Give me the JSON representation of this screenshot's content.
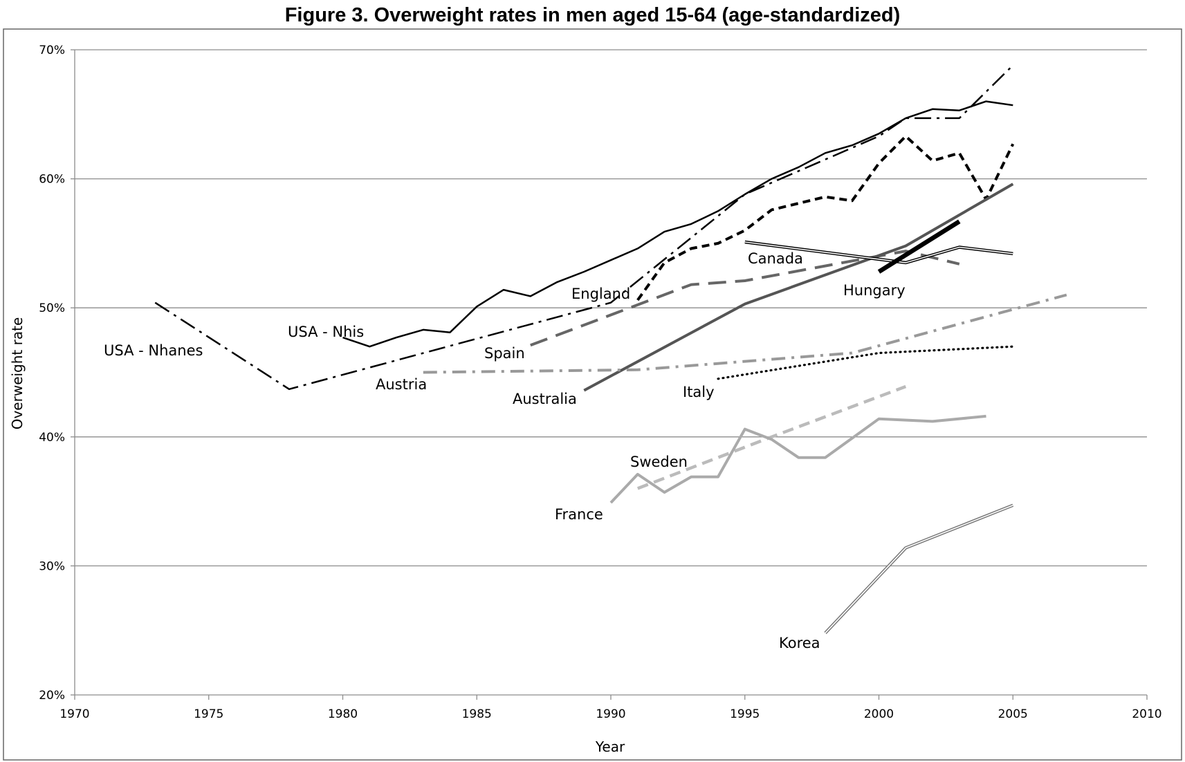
{
  "chart_data": {
    "type": "line",
    "title": "Figure 3.    Overweight rates in men aged 15-64 (age-standardized)",
    "xlabel": "Year",
    "ylabel": "Overweight rate",
    "xlim": [
      1970,
      2010
    ],
    "ylim": [
      20,
      70
    ],
    "x_ticks": [
      1970,
      1975,
      1980,
      1985,
      1990,
      1995,
      2000,
      2005,
      2010
    ],
    "x_tick_labels": [
      "1970",
      "1975",
      "1980",
      "1985",
      "1990",
      "1995",
      "2000",
      "2005",
      "2010"
    ],
    "y_ticks": [
      20,
      30,
      40,
      50,
      60,
      70
    ],
    "y_tick_labels": [
      "20%",
      "30%",
      "40%",
      "50%",
      "60%",
      "70%"
    ],
    "grid": "horizontal",
    "legend": "none (series labelled directly on the plot)",
    "series": [
      {
        "name": "USA - Nhanes",
        "color": "#000000",
        "style": "dash-dot",
        "points": [
          [
            1973,
            50.4
          ],
          [
            1978,
            43.7
          ],
          [
            1990,
            50.4
          ],
          [
            1995,
            58.8
          ],
          [
            2000,
            63.3
          ],
          [
            2001,
            64.7
          ],
          [
            2003,
            64.7
          ],
          [
            2005,
            68.8
          ]
        ]
      },
      {
        "name": "USA - Nhis",
        "color": "#000000",
        "style": "solid-thin",
        "points": [
          [
            1980,
            47.7
          ],
          [
            1981,
            47.0
          ],
          [
            1982,
            47.7
          ],
          [
            1983,
            48.3
          ],
          [
            1984,
            48.1
          ],
          [
            1985,
            50.1
          ],
          [
            1986,
            51.4
          ],
          [
            1987,
            50.9
          ],
          [
            1988,
            52.0
          ],
          [
            1989,
            52.8
          ],
          [
            1990,
            53.7
          ],
          [
            1991,
            54.6
          ],
          [
            1992,
            55.9
          ],
          [
            1993,
            56.5
          ],
          [
            1994,
            57.5
          ],
          [
            1995,
            58.8
          ],
          [
            1996,
            60.0
          ],
          [
            1997,
            60.9
          ],
          [
            1998,
            62.0
          ],
          [
            1999,
            62.6
          ],
          [
            2000,
            63.5
          ],
          [
            2001,
            64.7
          ],
          [
            2002,
            65.4
          ],
          [
            2003,
            65.3
          ],
          [
            2004,
            66.0
          ],
          [
            2005,
            65.7
          ]
        ]
      },
      {
        "name": "England",
        "color": "#000000",
        "style": "short-dash-bold",
        "points": [
          [
            1991,
            50.6
          ],
          [
            1992,
            53.5
          ],
          [
            1993,
            54.6
          ],
          [
            1994,
            55.0
          ],
          [
            1995,
            56.0
          ],
          [
            1996,
            57.6
          ],
          [
            1997,
            58.1
          ],
          [
            1998,
            58.6
          ],
          [
            1999,
            58.3
          ],
          [
            2000,
            61.2
          ],
          [
            2001,
            63.3
          ],
          [
            2002,
            61.4
          ],
          [
            2003,
            62.0
          ],
          [
            2004,
            58.4
          ],
          [
            2005,
            62.7
          ]
        ]
      },
      {
        "name": "Spain",
        "color": "#666666",
        "style": "long-dash",
        "points": [
          [
            1987,
            47.1
          ],
          [
            1993,
            51.8
          ],
          [
            1995,
            52.1
          ],
          [
            2001,
            54.4
          ],
          [
            2003,
            53.4
          ]
        ]
      },
      {
        "name": "Australia",
        "color": "#555555",
        "style": "solid-bold",
        "points": [
          [
            1989,
            43.6
          ],
          [
            1995,
            50.3
          ],
          [
            2001,
            54.8
          ],
          [
            2005,
            59.6
          ]
        ]
      },
      {
        "name": "Canada",
        "color": "#000000",
        "style": "double",
        "points": [
          [
            1995,
            55.1
          ],
          [
            2001,
            53.5
          ],
          [
            2003,
            54.7
          ],
          [
            2005,
            54.2
          ]
        ]
      },
      {
        "name": "Hungary",
        "color": "#000000",
        "style": "solid-heavy",
        "points": [
          [
            2000,
            52.8
          ],
          [
            2003,
            56.7
          ]
        ]
      },
      {
        "name": "Austria",
        "color": "#999999",
        "style": "dash-dot-bold",
        "points": [
          [
            1983,
            45.0
          ],
          [
            1991,
            45.2
          ],
          [
            1999,
            46.5
          ],
          [
            2007,
            51.0
          ]
        ]
      },
      {
        "name": "Italy",
        "color": "#000000",
        "style": "dotted",
        "points": [
          [
            1994,
            44.5
          ],
          [
            2000,
            46.5
          ],
          [
            2005,
            47.0
          ]
        ]
      },
      {
        "name": "Sweden",
        "color": "#bbbbbb",
        "style": "dash-bold",
        "points": [
          [
            1991,
            36.0
          ],
          [
            1996,
            40.0
          ],
          [
            2001,
            43.9
          ]
        ]
      },
      {
        "name": "France",
        "color": "#aaaaaa",
        "style": "solid-bold",
        "points": [
          [
            1990,
            34.9
          ],
          [
            1991,
            37.1
          ],
          [
            1992,
            35.7
          ],
          [
            1993,
            36.9
          ],
          [
            1994,
            36.9
          ],
          [
            1995,
            40.6
          ],
          [
            1996,
            39.8
          ],
          [
            1997,
            38.4
          ],
          [
            1998,
            38.4
          ],
          [
            1999,
            39.9
          ],
          [
            2000,
            41.4
          ],
          [
            2002,
            41.2
          ],
          [
            2004,
            41.6
          ]
        ]
      },
      {
        "name": "Korea",
        "color": "#777777",
        "style": "double",
        "points": [
          [
            1998,
            24.8
          ],
          [
            2001,
            31.4
          ],
          [
            2005,
            34.7
          ]
        ]
      }
    ]
  }
}
